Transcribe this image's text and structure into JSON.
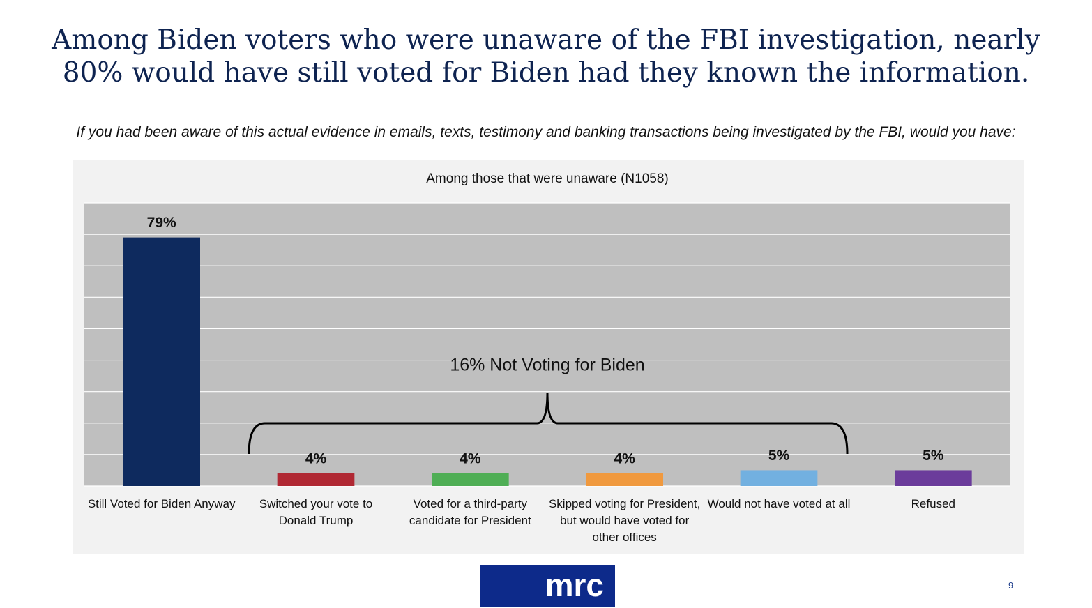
{
  "header": {
    "title": "Among Biden voters who were unaware of the FBI investigation, nearly 80% would have still voted for Biden had they known the information.",
    "question": "If you had been aware of this actual evidence in emails, texts, testimony and banking transactions being investigated by the FBI, would you have:"
  },
  "chart_data": {
    "type": "bar",
    "title": "Among those that were unaware (N1058)",
    "categories": [
      "Still Voted for Biden Anyway",
      "Switched your vote to Donald Trump",
      "Voted for a third-party candidate for President",
      "Skipped voting for President, but would have voted for other offices",
      "Would not have voted at all",
      "Refused"
    ],
    "values": [
      79,
      4,
      4,
      4,
      5,
      5
    ],
    "value_labels": [
      "79%",
      "4%",
      "4%",
      "4%",
      "5%",
      "5%"
    ],
    "colors": [
      "#0e2a5e",
      "#b02833",
      "#4fae55",
      "#f0993e",
      "#72b0e0",
      "#6b3c9b"
    ],
    "annotation": "16% Not Voting for Biden",
    "ylim": [
      0,
      90
    ],
    "yticks": [
      0,
      10,
      20,
      30,
      40,
      50,
      60,
      70,
      80,
      90
    ],
    "grid": true
  },
  "footer": {
    "logo": "mrc",
    "page": "9"
  }
}
